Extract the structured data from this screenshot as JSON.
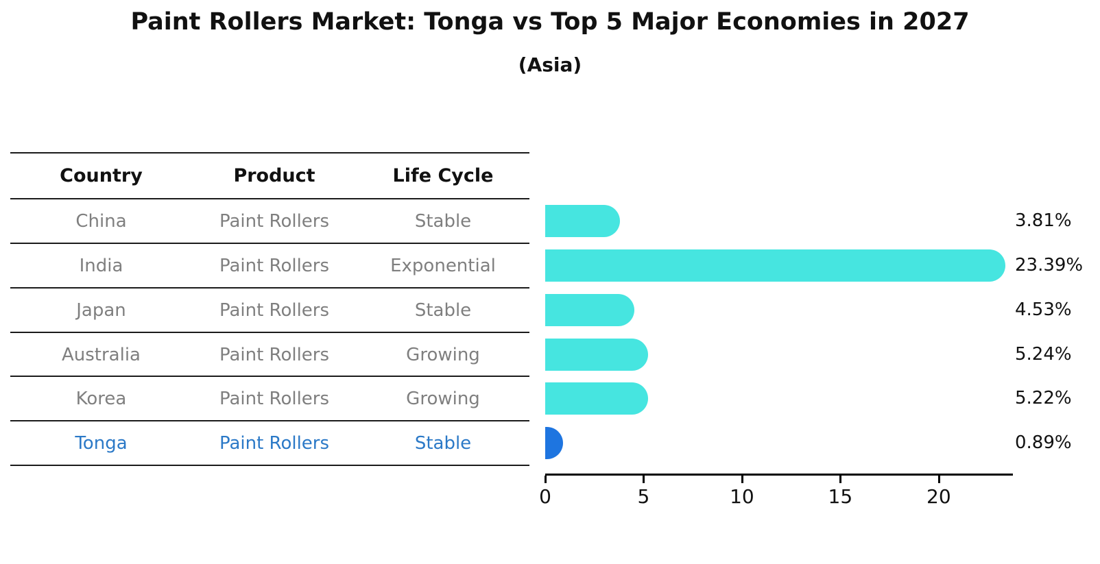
{
  "header": {
    "title": "Paint Rollers Market: Tonga vs Top 5 Major Economies in 2027",
    "subtitle": "(Asia)"
  },
  "table": {
    "columns": [
      "Country",
      "Product",
      "Life Cycle"
    ],
    "rows": [
      {
        "country": "China",
        "product": "Paint Rollers",
        "life_cycle": "Stable"
      },
      {
        "country": "India",
        "product": "Paint Rollers",
        "life_cycle": "Exponential"
      },
      {
        "country": "Japan",
        "product": "Paint Rollers",
        "life_cycle": "Stable"
      },
      {
        "country": "Australia",
        "product": "Paint Rollers",
        "life_cycle": "Growing"
      },
      {
        "country": "Korea",
        "product": "Paint Rollers",
        "life_cycle": "Growing"
      },
      {
        "country": "Tonga",
        "product": "Paint Rollers",
        "life_cycle": "Stable"
      }
    ]
  },
  "chart_data": {
    "type": "bar",
    "orientation": "horizontal",
    "title": "Paint Rollers Market: Tonga vs Top 5 Major Economies in 2027",
    "subtitle": "(Asia)",
    "categories": [
      "China",
      "India",
      "Japan",
      "Australia",
      "Korea",
      "Tonga"
    ],
    "values": [
      3.81,
      23.39,
      4.53,
      5.24,
      5.22,
      0.89
    ],
    "value_labels": [
      "3.81%",
      "23.39%",
      "4.53%",
      "5.24%",
      "5.22%",
      "0.89%"
    ],
    "unit": "%",
    "xlabel": "",
    "ylabel": "",
    "xlim": [
      0,
      23.7
    ],
    "xticks": [
      0,
      5,
      10,
      15,
      20
    ],
    "grid": false,
    "legend": false,
    "bar_colors": [
      "#46E5E0",
      "#46E5E0",
      "#46E5E0",
      "#46E5E0",
      "#46E5E0",
      "#1E75E0"
    ]
  },
  "colors": {
    "bar_cyan": "#46E5E0",
    "bar_blue": "#1E75E0",
    "highlight_text": "#2B79C7",
    "table_text": "#7F7F7F",
    "heading_text": "#111111",
    "axis": "#000000",
    "background": "#FFFFFF"
  }
}
